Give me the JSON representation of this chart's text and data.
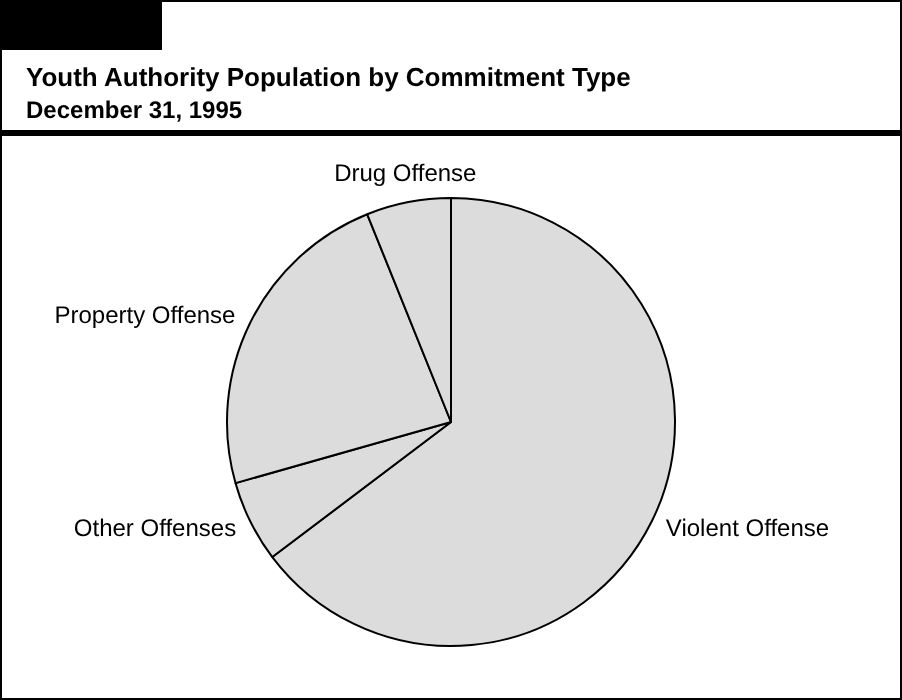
{
  "chart_data": {
    "type": "pie",
    "title": "Youth Authority Population by Commitment Type",
    "subtitle": "December 31, 1995",
    "categories": [
      "Violent Offense",
      "Other Offenses",
      "Property Offense",
      "Drug Offense"
    ],
    "values": [
      64.7,
      5.9,
      23.3,
      6.1
    ],
    "colors": [
      "#dcdcdc",
      "#dcdcdc",
      "#dcdcdc",
      "#dcdcdc"
    ],
    "legend": false
  }
}
